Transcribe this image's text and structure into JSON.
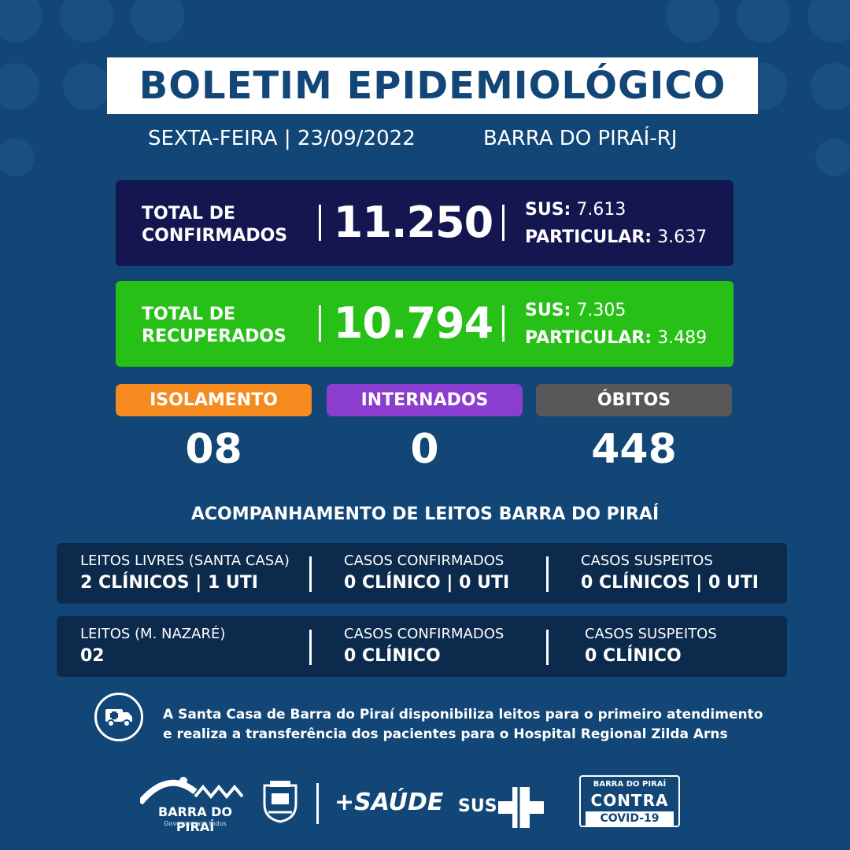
{
  "header": {
    "title": "BOLETIM EPIDEMIOLÓGICO",
    "date": "SEXTA-FEIRA | 23/09/2022",
    "city": "BARRA DO PIRAÍ-RJ"
  },
  "confirmed": {
    "label_line1": "TOTAL DE",
    "label_line2": "CONFIRMADOS",
    "total": "11.250",
    "sus_label": "SUS:",
    "sus_value": "7.613",
    "particular_label": "PARTICULAR:",
    "particular_value": "3.637"
  },
  "recovered": {
    "label_line1": "TOTAL DE",
    "label_line2": "RECUPERADOS",
    "total": "10.794",
    "sus_label": "SUS:",
    "sus_value": "7.305",
    "particular_label": "PARTICULAR:",
    "particular_value": "3.489"
  },
  "counters": {
    "isolamento": {
      "label": "ISOLAMENTO",
      "value": "08"
    },
    "internados": {
      "label": "INTERNADOS",
      "value": "0"
    },
    "obitos": {
      "label": "ÓBITOS",
      "value": "448"
    }
  },
  "leitos": {
    "title": "ACOMPANHAMENTO DE LEITOS BARRA DO PIRAÍ",
    "rows": [
      {
        "c1_label": "LEITOS LIVRES (SANTA CASA)",
        "c1_value": "2 CLÍNICOS | 1 UTI",
        "c2_label": "CASOS CONFIRMADOS",
        "c2_value": "0 CLÍNICO | 0 UTI",
        "c3_label": "CASOS SUSPEITOS",
        "c3_value": "0 CLÍNICOS | 0 UTI"
      },
      {
        "c1_label": "LEITOS (M. NAZARÉ)",
        "c1_value": "02",
        "c2_label": "CASOS CONFIRMADOS",
        "c2_value": "0 CLÍNICO",
        "c3_label": "CASOS SUSPEITOS",
        "c3_value": "0 CLÍNICO"
      }
    ]
  },
  "info": {
    "icon": "ambulance-icon",
    "line1": "A Santa Casa de Barra do Piraí disponibiliza leitos para o primeiro atendimento",
    "line2": "e realiza a transferência dos pacientes para o Hospital Regional Zilda Arns"
  },
  "footer": {
    "barra_name": "BARRA DO PIRAÍ",
    "barra_slogan": "Governo para todos",
    "saude": "+SAÚDE",
    "sus": "SUS",
    "covid_l1": "BARRA DO PIRAÍ",
    "covid_l2": "CONTRA",
    "covid_l3": "COVID-19"
  },
  "colors": {
    "background": "#124676",
    "confirmed_box": "#141650",
    "recovered_box": "#26c017",
    "isolamento": "#f58a1f",
    "internados": "#8a3dce",
    "obitos": "#585858",
    "leitos_row": "#0c2a4c"
  }
}
